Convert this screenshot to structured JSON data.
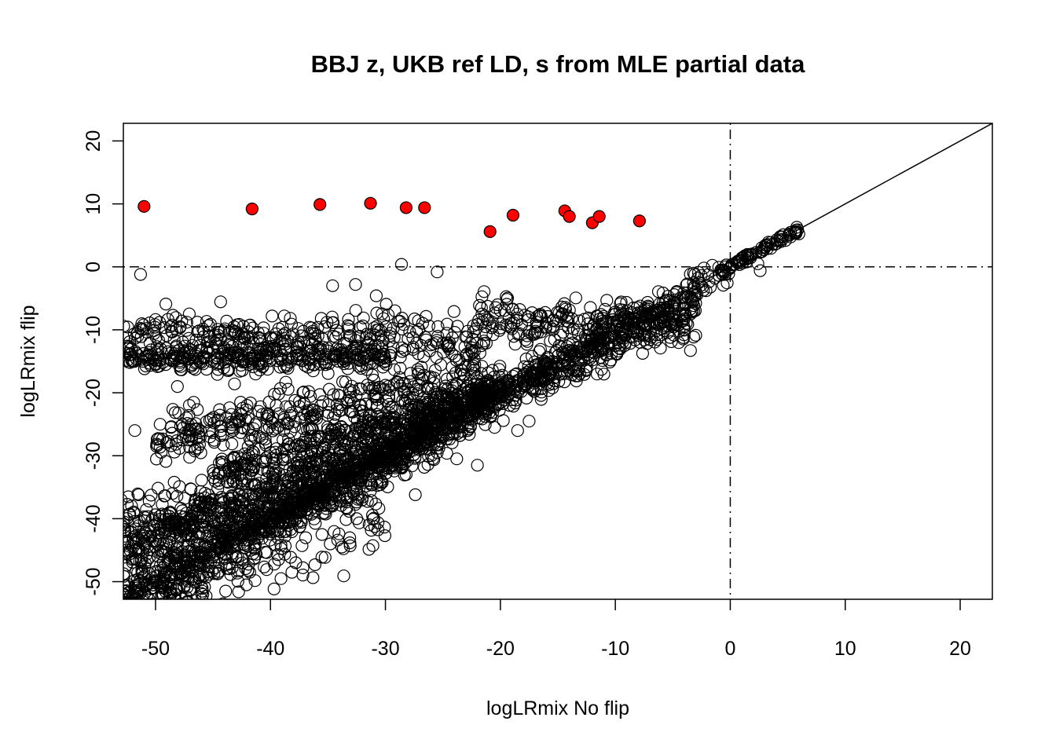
{
  "chart_data": {
    "type": "scatter",
    "title": "BBJ z, UKB ref LD, s from MLE partial data",
    "xlabel": "logLRmix No flip",
    "ylabel": "logLRmix flip",
    "xlim": [
      -52.8,
      22.8
    ],
    "ylim": [
      -52.8,
      22.8
    ],
    "x_ticks": [
      -50,
      -40,
      -30,
      -20,
      -10,
      0,
      10,
      20
    ],
    "y_ticks": [
      -50,
      -40,
      -30,
      -20,
      -10,
      0,
      10,
      20
    ],
    "x_tick_labels": [
      "-50",
      "-40",
      "-30",
      "-20",
      "-10",
      "0",
      "10",
      "20"
    ],
    "y_tick_labels": [
      "-50",
      "-40",
      "-30",
      "-20",
      "-10",
      "0",
      "10",
      "20"
    ],
    "reference_lines": {
      "diagonal": "y = x (solid)",
      "horizontal": {
        "y": 0,
        "style": "dot-dash"
      },
      "vertical": {
        "x": 0,
        "style": "dot-dash"
      }
    },
    "colors": {
      "open_points": "#000000",
      "highlight_fill": "#ff0000",
      "highlight_stroke": "#000000"
    },
    "highlighted_points": [
      {
        "x": -51.0,
        "y": 9.6
      },
      {
        "x": -41.6,
        "y": 9.2
      },
      {
        "x": -35.7,
        "y": 9.9
      },
      {
        "x": -31.3,
        "y": 10.1
      },
      {
        "x": -28.2,
        "y": 9.4
      },
      {
        "x": -26.6,
        "y": 9.4
      },
      {
        "x": -20.9,
        "y": 5.6
      },
      {
        "x": -18.9,
        "y": 8.2
      },
      {
        "x": -14.4,
        "y": 8.9
      },
      {
        "x": -14.0,
        "y": 8.0
      },
      {
        "x": -12.0,
        "y": 7.0
      },
      {
        "x": -11.4,
        "y": 8.0
      },
      {
        "x": -7.9,
        "y": 7.3
      }
    ],
    "point_clusters": [
      {
        "x_range": [
          -52.8,
          -22
        ],
        "y_mean": -11.5,
        "y_spread": 2.2
      },
      {
        "x_range": [
          -52.8,
          -30
        ],
        "y_mean": -14.5,
        "y_spread": 1.0
      },
      {
        "x_range": [
          -22,
          -3
        ],
        "y_mean": -9.0,
        "y_spread": 2.0
      },
      {
        "x_range": [
          -52.8,
          0
        ],
        "y_slope": 1.0,
        "y_offset": 0.0,
        "y_spread": 1.0
      },
      {
        "x_range": [
          -52.8,
          -3
        ],
        "y_slope": 0.9,
        "y_offset": -3.0,
        "y_spread": 1.5
      },
      {
        "x_range": [
          -52.8,
          -15
        ],
        "y_slope": 0.75,
        "y_offset": -5.0,
        "y_spread": 1.5
      },
      {
        "x_range": [
          -45,
          -20
        ],
        "y_slope": 0.55,
        "y_offset": -8.0,
        "y_spread": 1.2
      },
      {
        "x_range": [
          -52.8,
          -25
        ],
        "y_slope": 0.6,
        "y_offset": -12.0,
        "y_spread": 2.5
      },
      {
        "x_range": [
          -50,
          -22
        ],
        "y_slope": 0.35,
        "y_offset": -10.0,
        "y_spread": 2.0
      },
      {
        "x_range": [
          -52.8,
          -20
        ],
        "y_slope": 1.2,
        "y_offset": 6.0,
        "y_spread": 2.0
      },
      {
        "x_range": [
          -52.8,
          -30
        ],
        "y_slope": 0.4,
        "y_offset": -25.0,
        "y_spread": 5.0
      },
      {
        "x_range": [
          0,
          6
        ],
        "y_slope": 1.0,
        "y_offset": 0.0,
        "y_spread": 0.3
      }
    ],
    "outlier_points": [
      {
        "x": -51.3,
        "y": -1.2
      },
      {
        "x": -28.6,
        "y": 0.4
      },
      {
        "x": -25.5,
        "y": -0.8
      },
      {
        "x": -34.6,
        "y": -3.0
      },
      {
        "x": -32.6,
        "y": -2.8
      },
      {
        "x": -30.8,
        "y": -4.6
      },
      {
        "x": -51.8,
        "y": -26.0
      },
      {
        "x": -49.6,
        "y": -25.0
      },
      {
        "x": -47.3,
        "y": -24.0
      },
      {
        "x": -46.1,
        "y": -26.0
      },
      {
        "x": -48.1,
        "y": -19.0
      },
      {
        "x": -42.6,
        "y": -21.5
      },
      {
        "x": -39.5,
        "y": -22.0
      },
      {
        "x": -34.8,
        "y": -44.0
      },
      {
        "x": -33.8,
        "y": -44.5
      },
      {
        "x": -32.5,
        "y": -40.0
      },
      {
        "x": -41.8,
        "y": -48.5
      },
      {
        "x": -39.3,
        "y": -46.5
      },
      {
        "x": -37.8,
        "y": -47.0
      },
      {
        "x": -42.1,
        "y": -50.5
      },
      {
        "x": -43.9,
        "y": -51.5
      },
      {
        "x": -45.6,
        "y": -52.3
      },
      {
        "x": -20.5,
        "y": -25.5
      },
      {
        "x": -18.5,
        "y": -26.0
      },
      {
        "x": -17.5,
        "y": -24.5
      },
      {
        "x": -22.0,
        "y": -31.5
      },
      {
        "x": -23.8,
        "y": -30.5
      },
      {
        "x": -19.2,
        "y": -22.0
      },
      {
        "x": -6.4,
        "y": -10.8
      },
      {
        "x": -5.8,
        "y": -9.6
      },
      {
        "x": -4.7,
        "y": -8.5
      },
      {
        "x": -3.9,
        "y": -7.8
      },
      {
        "x": 2.4,
        "y": 0.5
      },
      {
        "x": 2.6,
        "y": -0.6
      },
      {
        "x": 4.8,
        "y": 4.2
      },
      {
        "x": 5.7,
        "y": 5.4
      },
      {
        "x": -53.0,
        "y": -37.0
      },
      {
        "x": -53.0,
        "y": -41.0
      },
      {
        "x": -36.2,
        "y": -23.5
      },
      {
        "x": -35.9,
        "y": -23.0
      },
      {
        "x": -31.0,
        "y": -18.0
      },
      {
        "x": -27.4,
        "y": -36.2
      },
      {
        "x": -28.2,
        "y": -33.0
      }
    ]
  }
}
